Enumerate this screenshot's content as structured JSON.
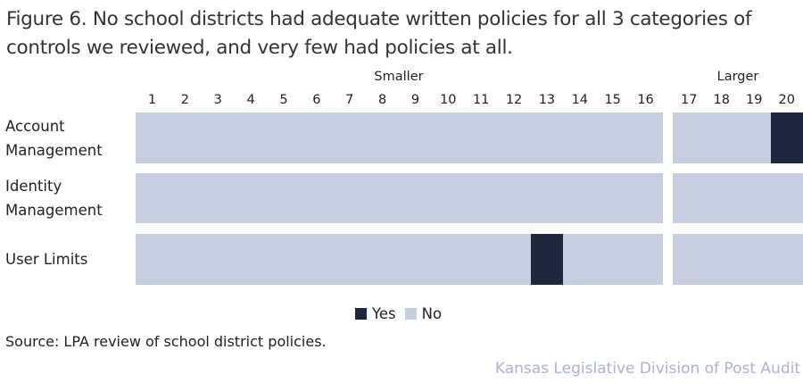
{
  "chart_data": {
    "type": "heatmap",
    "title": "Figure 6. No school districts had adequate written policies for all 3 categories of controls we reviewed, and very few had policies at all.",
    "groups": [
      {
        "label": "Smaller",
        "columns": [
          1,
          2,
          3,
          4,
          5,
          6,
          7,
          8,
          9,
          10,
          11,
          12,
          13,
          14,
          15,
          16
        ]
      },
      {
        "label": "Larger",
        "columns": [
          17,
          18,
          19,
          20
        ]
      }
    ],
    "rows": [
      "Account Management",
      "Identity Management",
      "User Limits"
    ],
    "yes_cells": [
      {
        "row": "Account Management",
        "district": 20
      },
      {
        "row": "User Limits",
        "district": 13
      }
    ],
    "legend": [
      {
        "label": "Yes",
        "color": "#1e283c"
      },
      {
        "label": "No",
        "color": "#c5cfe0"
      }
    ],
    "source": "Source: LPA review of school district policies.",
    "credit": "Kansas Legislative Division of Post Audit"
  }
}
